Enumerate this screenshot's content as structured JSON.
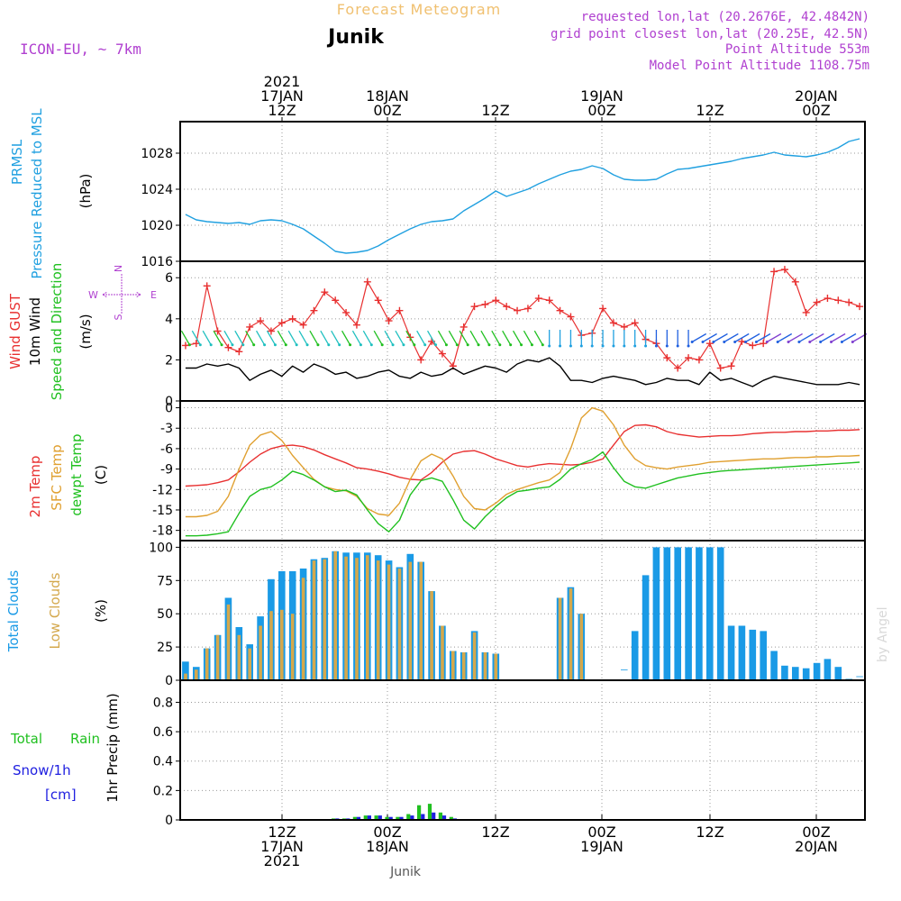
{
  "header": {
    "super_title": "Forecast Meteogram",
    "location": "Junik",
    "model": "ICON-EU, ~ 7km",
    "requested": "requested lon,lat (20.2676E, 42.4842N)",
    "grid_point": "grid point closest lon,lat (20.25E, 42.5N)",
    "point_altitude": "Point Altitude 553m",
    "model_altitude": "Model Point Altitude 1108.75m",
    "watermark": "by Angel",
    "footer_location": "Junik"
  },
  "colors": {
    "pressure": "#20a0e0",
    "gust": "#e83030",
    "wind": "#000000",
    "t2m": "#e83030",
    "sfc": "#e0a030",
    "dewpt": "#20c020",
    "total_cloud": "#1a9ae6",
    "low_cloud": "#d4a84c",
    "rain": "#20c020",
    "snow": "#2020e0",
    "violet": "#b040d0"
  },
  "chart_data": [
    {
      "type": "line",
      "panel": "pressure",
      "ylabel_primary": "PRMSL",
      "ylabel_secondary": "Pressure Reduced to MSL",
      "units": "(hPa)",
      "ylim": [
        1016,
        1031.5
      ],
      "yticks": [
        1016,
        1020,
        1024,
        1028
      ],
      "xlim": [
        0,
        64
      ],
      "series": [
        {
          "name": "PRMSL",
          "values": [
            1021.2,
            1020.6,
            1020.4,
            1020.3,
            1020.2,
            1020.3,
            1020.1,
            1020.5,
            1020.6,
            1020.5,
            1020.1,
            1019.6,
            1018.8,
            1018.0,
            1017.1,
            1016.9,
            1017.0,
            1017.2,
            1017.7,
            1018.4,
            1019.0,
            1019.6,
            1020.1,
            1020.4,
            1020.5,
            1020.7,
            1021.6,
            1022.3,
            1023.0,
            1023.8,
            1023.2,
            1023.6,
            1024.0,
            1024.6,
            1025.1,
            1025.6,
            1026.0,
            1026.2,
            1026.6,
            1026.3,
            1025.6,
            1025.1,
            1025.0,
            1025.0,
            1025.1,
            1025.7,
            1026.2,
            1026.3,
            1026.5,
            1026.7,
            1026.9,
            1027.1,
            1027.4,
            1027.6,
            1027.8,
            1028.1,
            1027.8,
            1027.7,
            1027.6,
            1027.8,
            1028.1,
            1028.6,
            1029.3,
            1029.6
          ]
        }
      ]
    },
    {
      "type": "line",
      "panel": "wind",
      "ylabel_primary": "Wind GUST",
      "ylabel_secondary": "10m Wind",
      "ylabel_tertiary": "Speed and Direction",
      "units": "(m/s)",
      "ylim": [
        0,
        6.8
      ],
      "yticks": [
        0,
        2,
        4,
        6
      ],
      "compass": {
        "n": "N",
        "s": "S",
        "w": "W",
        "e": "E"
      },
      "series": [
        {
          "name": "Wind GUST",
          "values": [
            2.7,
            2.8,
            5.6,
            3.4,
            2.6,
            2.4,
            3.6,
            3.9,
            3.4,
            3.8,
            4.0,
            3.7,
            4.4,
            5.3,
            4.9,
            4.3,
            3.7,
            5.8,
            4.9,
            3.9,
            4.4,
            3.1,
            2.0,
            2.9,
            2.3,
            1.7,
            3.6,
            4.6,
            4.7,
            4.9,
            4.6,
            4.4,
            4.5,
            5.0,
            4.9,
            4.4,
            4.1,
            3.2,
            3.3,
            4.5,
            3.8,
            3.6,
            3.8,
            3.0,
            2.8,
            2.1,
            1.6,
            2.1,
            2.0,
            2.8,
            1.6,
            1.7,
            2.9,
            2.7,
            2.8,
            6.3,
            6.4,
            5.8,
            4.3,
            4.8,
            5.0,
            4.9,
            4.8,
            4.6
          ]
        },
        {
          "name": "10m Wind",
          "values": [
            1.6,
            1.6,
            1.8,
            1.7,
            1.8,
            1.6,
            1.0,
            1.3,
            1.5,
            1.2,
            1.7,
            1.4,
            1.8,
            1.6,
            1.3,
            1.4,
            1.1,
            1.2,
            1.4,
            1.5,
            1.2,
            1.1,
            1.4,
            1.2,
            1.3,
            1.6,
            1.3,
            1.5,
            1.7,
            1.6,
            1.4,
            1.8,
            2.0,
            1.9,
            2.1,
            1.7,
            1.0,
            1.0,
            0.9,
            1.1,
            1.2,
            1.1,
            1.0,
            0.8,
            0.9,
            1.1,
            1.0,
            1.0,
            0.8,
            1.4,
            1.0,
            1.1,
            0.9,
            0.7,
            1.0,
            1.2,
            1.1,
            1.0,
            0.9,
            0.8,
            0.8,
            0.8,
            0.9,
            0.8
          ]
        }
      ]
    },
    {
      "type": "line",
      "panel": "temperature",
      "ylabel_primary": "2m Temp",
      "ylabel_secondary": "SFC Temp",
      "ylabel_tertiary": "dewpt Temp",
      "units": "(C)",
      "ylim": [
        -19.5,
        1.0
      ],
      "yticks": [
        0,
        -3,
        -6,
        -9,
        -12,
        -15,
        -18
      ],
      "series": [
        {
          "name": "2m Temp",
          "values": [
            -11.5,
            -11.4,
            -11.3,
            -11.0,
            -10.6,
            -9.4,
            -8.0,
            -6.8,
            -6.0,
            -5.6,
            -5.5,
            -5.7,
            -6.2,
            -6.9,
            -7.5,
            -8.1,
            -8.8,
            -9.0,
            -9.3,
            -9.7,
            -10.2,
            -10.5,
            -10.6,
            -9.5,
            -8.0,
            -6.8,
            -6.4,
            -6.3,
            -6.8,
            -7.5,
            -8.0,
            -8.5,
            -8.7,
            -8.4,
            -8.2,
            -8.3,
            -8.4,
            -8.3,
            -8.0,
            -7.5,
            -5.5,
            -3.5,
            -2.6,
            -2.5,
            -2.8,
            -3.5,
            -3.9,
            -4.1,
            -4.3,
            -4.2,
            -4.1,
            -4.1,
            -4.0,
            -3.8,
            -3.7,
            -3.6,
            -3.6,
            -3.5,
            -3.5,
            -3.4,
            -3.4,
            -3.3,
            -3.3,
            -3.2
          ]
        },
        {
          "name": "SFC Temp",
          "values": [
            -16.0,
            -16.0,
            -15.8,
            -15.2,
            -13.0,
            -9.0,
            -5.5,
            -4.0,
            -3.5,
            -4.8,
            -7.0,
            -8.8,
            -10.5,
            -11.6,
            -12.0,
            -12.2,
            -13.0,
            -14.8,
            -15.6,
            -15.8,
            -14.0,
            -10.5,
            -7.8,
            -6.8,
            -7.5,
            -10.0,
            -13.0,
            -14.8,
            -15.0,
            -14.0,
            -12.7,
            -12.0,
            -11.5,
            -11.0,
            -10.6,
            -9.5,
            -6.0,
            -1.5,
            0.0,
            -0.5,
            -2.5,
            -5.5,
            -7.5,
            -8.5,
            -8.8,
            -9.0,
            -8.7,
            -8.5,
            -8.3,
            -8.0,
            -7.9,
            -7.8,
            -7.7,
            -7.6,
            -7.5,
            -7.5,
            -7.4,
            -7.3,
            -7.3,
            -7.2,
            -7.2,
            -7.1,
            -7.1,
            -7.0
          ]
        },
        {
          "name": "dewpt Temp",
          "values": [
            -18.8,
            -18.8,
            -18.7,
            -18.5,
            -18.2,
            -15.5,
            -13.0,
            -12.0,
            -11.6,
            -10.6,
            -9.3,
            -9.8,
            -10.6,
            -11.6,
            -12.3,
            -12.1,
            -12.8,
            -15.0,
            -17.0,
            -18.2,
            -16.5,
            -12.8,
            -10.7,
            -10.3,
            -10.8,
            -13.5,
            -16.5,
            -17.8,
            -16.0,
            -14.5,
            -13.2,
            -12.3,
            -12.1,
            -11.8,
            -11.6,
            -10.5,
            -9.0,
            -8.2,
            -7.6,
            -6.5,
            -8.8,
            -10.8,
            -11.6,
            -11.8,
            -11.3,
            -10.8,
            -10.3,
            -10.0,
            -9.7,
            -9.5,
            -9.3,
            -9.2,
            -9.1,
            -9.0,
            -8.9,
            -8.8,
            -8.7,
            -8.6,
            -8.5,
            -8.4,
            -8.3,
            -8.2,
            -8.1,
            -8.0
          ]
        }
      ]
    },
    {
      "type": "bar",
      "panel": "clouds",
      "ylabel_primary": "Total Clouds",
      "ylabel_secondary": "Low Clouds",
      "units": "(%)",
      "ylim": [
        0,
        105
      ],
      "yticks": [
        0,
        25,
        50,
        75,
        100
      ],
      "series": [
        {
          "name": "Total Clouds",
          "values": [
            14,
            10,
            24,
            34,
            62,
            40,
            27,
            48,
            76,
            82,
            82,
            84,
            91,
            92,
            97,
            96,
            96,
            96,
            94,
            90,
            85,
            95,
            89,
            67,
            41,
            22,
            21,
            37,
            21,
            20,
            0,
            0,
            0,
            0,
            0,
            62,
            70,
            50,
            0,
            0,
            0,
            8,
            37,
            79,
            100,
            100,
            100,
            100,
            100,
            100,
            100,
            41,
            41,
            38,
            37,
            22,
            11,
            10,
            9,
            13,
            16,
            10,
            1,
            3
          ]
        },
        {
          "name": "Low Clouds",
          "values": [
            5,
            8,
            24,
            34,
            57,
            34,
            24,
            41,
            52,
            53,
            50,
            77,
            90,
            91,
            97,
            93,
            92,
            94,
            90,
            87,
            84,
            89,
            89,
            67,
            41,
            22,
            21,
            36,
            21,
            20,
            0,
            0,
            0,
            0,
            0,
            62,
            69,
            50,
            0,
            0,
            0,
            0,
            0,
            0,
            0,
            0,
            0,
            0,
            0,
            0,
            0,
            0,
            0,
            0,
            0,
            0,
            0,
            0,
            0,
            0,
            0,
            0,
            0,
            0
          ]
        }
      ]
    },
    {
      "type": "bar",
      "panel": "precip",
      "ylabel_primary": "Total",
      "ylabel_rain": "Rain",
      "ylabel_secondary": "Snow/1h",
      "ylabel_snow_units": "[cm]",
      "units": "1hr Precip (mm)",
      "ylim": [
        0,
        0.95
      ],
      "yticks": [
        0,
        0.2,
        0.4,
        0.6,
        0.8
      ],
      "ytick_labels": [
        "0",
        "0.2",
        "0.4",
        "0.6",
        "0.8"
      ],
      "series": [
        {
          "name": "Total Rain",
          "values": [
            0,
            0,
            0,
            0,
            0,
            0,
            0,
            0,
            0,
            0,
            0,
            0,
            0,
            0,
            0.01,
            0.01,
            0.02,
            0.03,
            0.03,
            0.02,
            0.02,
            0.04,
            0.1,
            0.11,
            0.05,
            0.02,
            0,
            0,
            0,
            0,
            0,
            0,
            0,
            0,
            0,
            0,
            0,
            0,
            0,
            0,
            0,
            0,
            0,
            0,
            0,
            0,
            0,
            0,
            0,
            0,
            0,
            0,
            0,
            0,
            0,
            0,
            0,
            0,
            0,
            0,
            0,
            0,
            0,
            0
          ]
        },
        {
          "name": "Snow/1h",
          "values": [
            0,
            0,
            0,
            0,
            0,
            0,
            0,
            0,
            0,
            0,
            0,
            0,
            0,
            0,
            0.01,
            0.01,
            0.02,
            0.03,
            0.03,
            0.02,
            0.02,
            0.03,
            0.04,
            0.05,
            0.03,
            0.01,
            0,
            0,
            0,
            0,
            0,
            0,
            0,
            0,
            0,
            0,
            0,
            0,
            0,
            0,
            0,
            0,
            0,
            0,
            0,
            0,
            0,
            0,
            0,
            0,
            0,
            0,
            0,
            0,
            0,
            0,
            0,
            0,
            0,
            0,
            0,
            0,
            0,
            0
          ]
        }
      ]
    }
  ],
  "time_axis": {
    "top": [
      {
        "label": [
          "2021",
          "17JAN",
          "12Z"
        ]
      },
      {
        "label": [
          "18JAN",
          "00Z"
        ]
      },
      {
        "label": [
          "12Z"
        ]
      },
      {
        "label": [
          "19JAN",
          "00Z"
        ]
      },
      {
        "label": [
          "12Z"
        ]
      },
      {
        "label": [
          "20JAN",
          "00Z"
        ]
      }
    ],
    "bottom": [
      {
        "label": [
          "12Z",
          "17JAN",
          "2021"
        ]
      },
      {
        "label": [
          "00Z",
          "18JAN"
        ]
      },
      {
        "label": [
          "12Z"
        ]
      },
      {
        "label": [
          "00Z",
          "19JAN"
        ]
      },
      {
        "label": [
          "12Z"
        ]
      },
      {
        "label": [
          "00Z",
          "20JAN"
        ]
      }
    ]
  }
}
